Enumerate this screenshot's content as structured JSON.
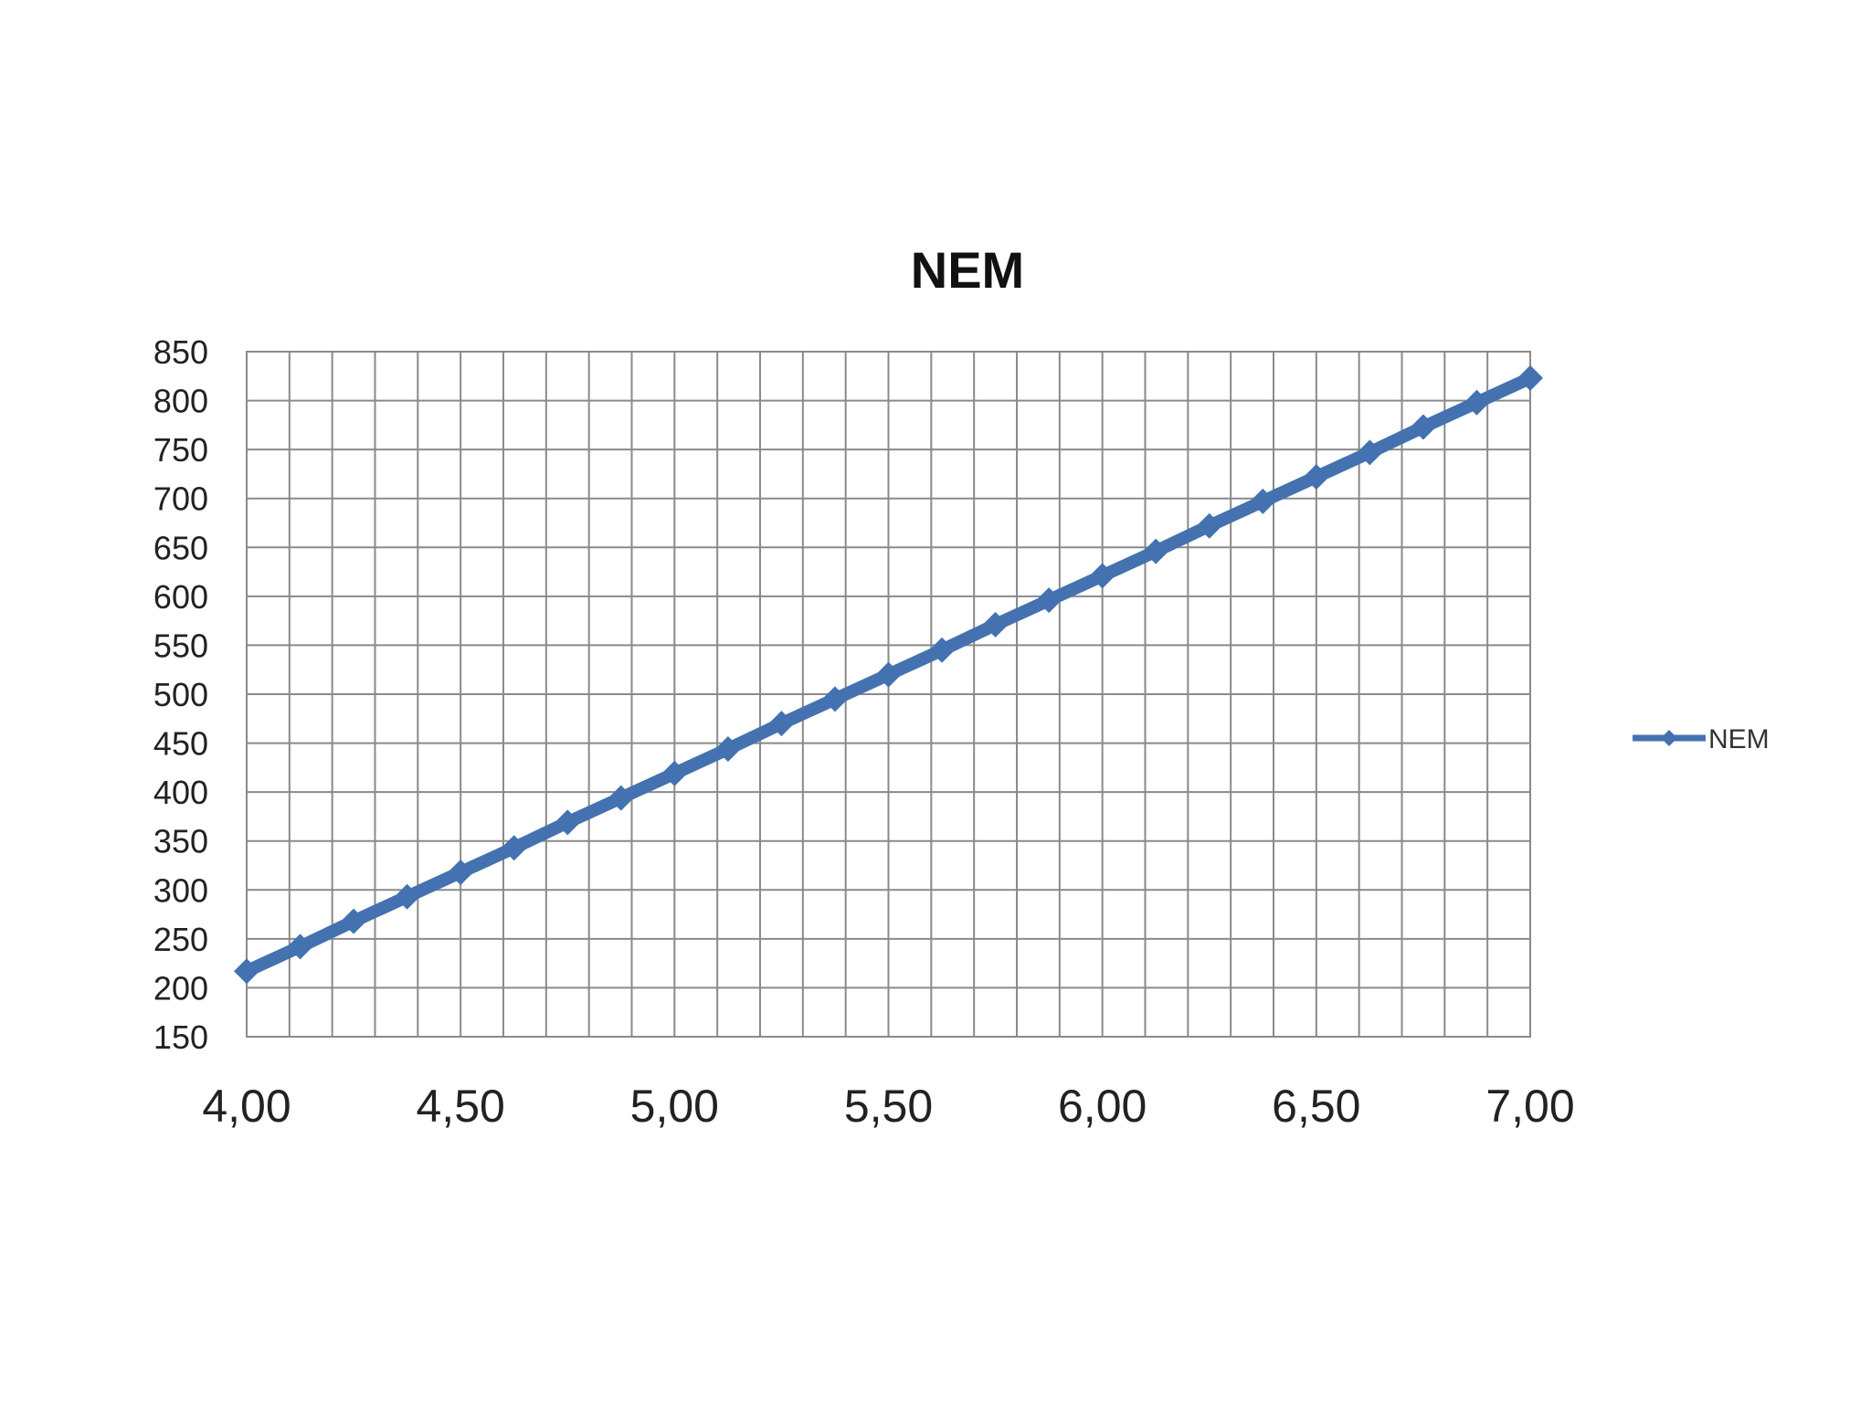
{
  "chart_data": {
    "type": "line",
    "title": "NEM",
    "xlabel": "",
    "ylabel": "",
    "x": [
      4.0,
      4.125,
      4.25,
      4.375,
      4.5,
      4.625,
      4.75,
      4.875,
      5.0,
      5.125,
      5.25,
      5.375,
      5.5,
      5.625,
      5.75,
      5.875,
      6.0,
      6.125,
      6.25,
      6.375,
      6.5,
      6.625,
      6.75,
      6.875,
      7.0
    ],
    "series": [
      {
        "name": "NEM",
        "color": "#4472b0",
        "values": [
          217,
          242,
          268,
          293,
          318,
          343,
          369,
          394,
          419,
          444,
          470,
          495,
          520,
          545,
          571,
          596,
          621,
          646,
          672,
          697,
          722,
          747,
          773,
          798,
          823
        ]
      }
    ],
    "xlim": [
      4.0,
      7.0
    ],
    "ylim": [
      150,
      850
    ],
    "x_ticks": [
      "4,00",
      "4,50",
      "5,00",
      "5,50",
      "6,00",
      "6,50",
      "7,00"
    ],
    "x_tick_values": [
      4.0,
      4.5,
      5.0,
      5.5,
      6.0,
      6.5,
      7.0
    ],
    "y_ticks": [
      "150",
      "200",
      "250",
      "300",
      "350",
      "400",
      "450",
      "500",
      "550",
      "600",
      "650",
      "700",
      "750",
      "800",
      "850"
    ],
    "y_tick_values": [
      150,
      200,
      250,
      300,
      350,
      400,
      450,
      500,
      550,
      600,
      650,
      700,
      750,
      800,
      850
    ],
    "x_minor_step": 0.1,
    "grid": true,
    "legend": "right",
    "marker": "diamond"
  }
}
